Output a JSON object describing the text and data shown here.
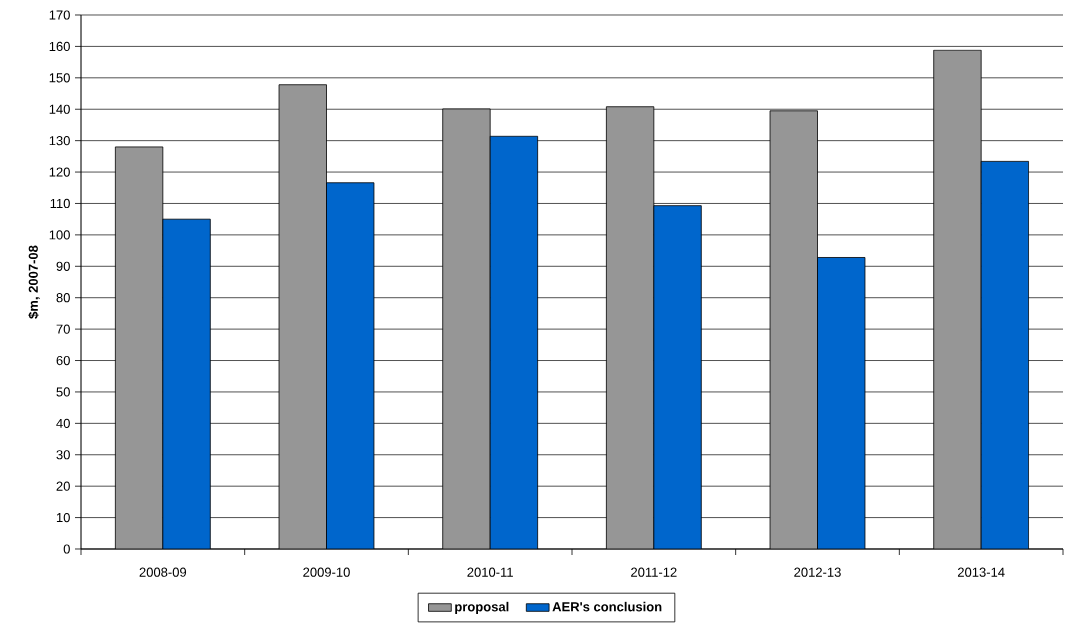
{
  "chart_data": {
    "type": "bar",
    "categories": [
      "2008-09",
      "2009-10",
      "2010-11",
      "2011-12",
      "2012-13",
      "2013-14"
    ],
    "series": [
      {
        "name": "proposal",
        "color": "#969696",
        "values": [
          128,
          147.8,
          140.1,
          140.8,
          139.5,
          158.8
        ]
      },
      {
        "name": "AER's conclusion",
        "color": "#0066cc",
        "values": [
          105,
          116.6,
          131.4,
          109.3,
          92.8,
          123.4
        ]
      }
    ],
    "ylabel": "$m, 2007-08",
    "ylim": [
      0,
      170
    ],
    "yticks": [
      0,
      10,
      20,
      30,
      40,
      50,
      60,
      70,
      80,
      90,
      100,
      110,
      120,
      130,
      140,
      150,
      160,
      170
    ],
    "grid": "y",
    "legend": "bottom"
  }
}
